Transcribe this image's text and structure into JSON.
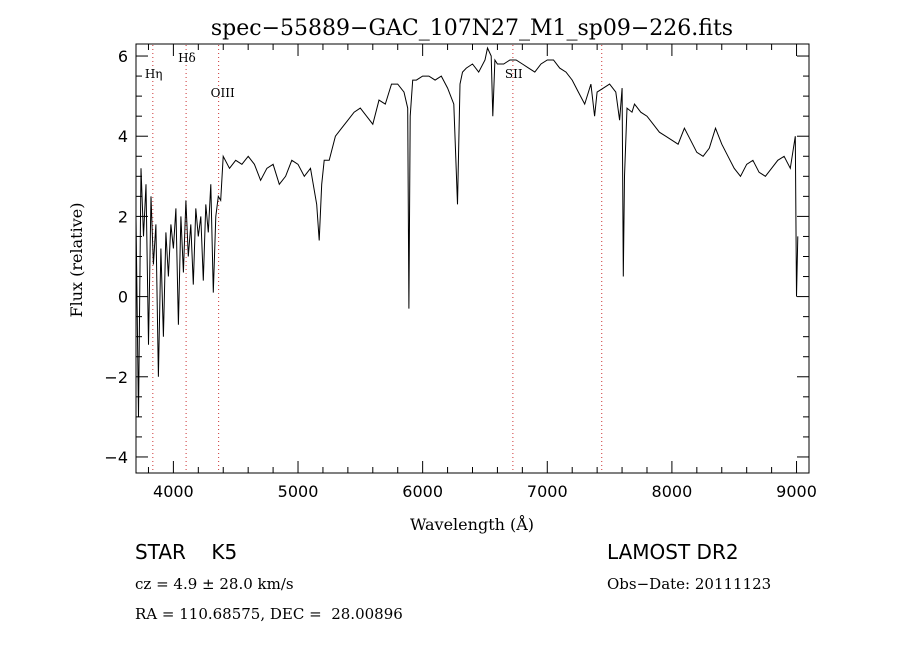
{
  "chart_data": {
    "type": "line",
    "title": "spec−55889−GAC_107N27_M1_sp09−226.fits",
    "xlabel": "Wavelength (Å)",
    "ylabel": "Flux (relative)",
    "xlim": [
      3700,
      9100
    ],
    "ylim": [
      -4.4,
      6.3
    ],
    "xticks": [
      4000,
      5000,
      6000,
      7000,
      8000,
      9000
    ],
    "yticks": [
      -4,
      -2,
      0,
      2,
      4,
      6
    ],
    "xtick_labels": [
      "4000",
      "5000",
      "6000",
      "7000",
      "8000",
      "9000"
    ],
    "ytick_labels": [
      "−4",
      "−2",
      "0",
      "2",
      "4",
      "6"
    ],
    "grid": false,
    "series": [
      {
        "color": "#000000",
        "x": [
          3700,
          3720,
          3740,
          3760,
          3780,
          3800,
          3820,
          3840,
          3860,
          3880,
          3900,
          3920,
          3940,
          3960,
          3980,
          4000,
          4020,
          4040,
          4060,
          4080,
          4100,
          4120,
          4140,
          4160,
          4180,
          4200,
          4220,
          4240,
          4260,
          4280,
          4300,
          4320,
          4340,
          4360,
          4380,
          4400,
          4450,
          4500,
          4550,
          4600,
          4650,
          4700,
          4750,
          4800,
          4850,
          4900,
          4950,
          5000,
          5050,
          5100,
          5150,
          5170,
          5190,
          5210,
          5250,
          5300,
          5350,
          5400,
          5450,
          5500,
          5550,
          5600,
          5650,
          5700,
          5750,
          5800,
          5850,
          5880,
          5890,
          5900,
          5920,
          5950,
          6000,
          6050,
          6100,
          6150,
          6200,
          6250,
          6280,
          6300,
          6320,
          6350,
          6400,
          6450,
          6500,
          6520,
          6550,
          6563,
          6580,
          6600,
          6650,
          6700,
          6750,
          6800,
          6850,
          6900,
          6950,
          7000,
          7050,
          7100,
          7150,
          7200,
          7250,
          7300,
          7350,
          7380,
          7400,
          7450,
          7500,
          7550,
          7580,
          7600,
          7610,
          7620,
          7640,
          7680,
          7700,
          7750,
          7800,
          7850,
          7900,
          7950,
          8000,
          8050,
          8100,
          8150,
          8200,
          8250,
          8300,
          8350,
          8400,
          8450,
          8500,
          8550,
          8600,
          8650,
          8700,
          8750,
          8800,
          8850,
          8900,
          8950,
          8990,
          9000,
          9010
        ],
        "y": [
          2.0,
          -3.0,
          3.2,
          1.5,
          2.8,
          -1.2,
          2.5,
          0.8,
          1.8,
          -2.0,
          1.2,
          -1.0,
          1.6,
          0.5,
          1.8,
          1.2,
          2.2,
          -0.7,
          2.0,
          0.6,
          2.4,
          1.0,
          1.8,
          0.3,
          2.2,
          1.5,
          2.0,
          0.4,
          2.3,
          1.6,
          2.8,
          0.1,
          2.0,
          2.5,
          2.4,
          3.5,
          3.2,
          3.4,
          3.3,
          3.5,
          3.3,
          2.9,
          3.2,
          3.3,
          2.8,
          3.0,
          3.4,
          3.3,
          3.0,
          3.2,
          2.3,
          1.4,
          2.8,
          3.4,
          3.4,
          4.0,
          4.2,
          4.4,
          4.6,
          4.7,
          4.5,
          4.3,
          4.9,
          4.8,
          5.3,
          5.3,
          5.1,
          4.7,
          -0.3,
          4.5,
          5.4,
          5.4,
          5.5,
          5.5,
          5.4,
          5.5,
          5.2,
          4.8,
          2.3,
          5.3,
          5.6,
          5.7,
          5.8,
          5.6,
          5.9,
          6.2,
          6.0,
          4.5,
          5.9,
          5.8,
          5.8,
          5.9,
          5.9,
          5.8,
          5.7,
          5.6,
          5.8,
          5.9,
          5.9,
          5.7,
          5.6,
          5.4,
          5.1,
          4.8,
          5.3,
          4.5,
          5.1,
          5.2,
          5.3,
          5.1,
          4.4,
          5.2,
          0.5,
          3.0,
          4.7,
          4.6,
          4.8,
          4.6,
          4.5,
          4.3,
          4.1,
          4.0,
          3.9,
          3.8,
          4.2,
          3.9,
          3.6,
          3.5,
          3.7,
          4.2,
          3.8,
          3.5,
          3.2,
          3.0,
          3.3,
          3.4,
          3.1,
          3.0,
          3.2,
          3.4,
          3.5,
          3.2,
          4.0,
          0.0,
          1.5
        ]
      }
    ],
    "line_markers": [
      {
        "label": "Hη",
        "wavelength": 3835
      },
      {
        "label": "Hδ",
        "wavelength": 4102
      },
      {
        "label": "OIII",
        "wavelength": 4363
      },
      {
        "label": "SII",
        "wavelength": 6724
      },
      {
        "label": "",
        "wavelength": 7437
      }
    ],
    "marker_color": "#cc3333"
  },
  "footer": {
    "object_class": "STAR",
    "subclass": "K5",
    "survey": "LAMOST DR2",
    "cz": "cz = 4.9 ± 28.0 km/s",
    "obs_date": "Obs−Date: 20111123",
    "radec": "RA = 110.68575, DEC =  28.00896"
  }
}
